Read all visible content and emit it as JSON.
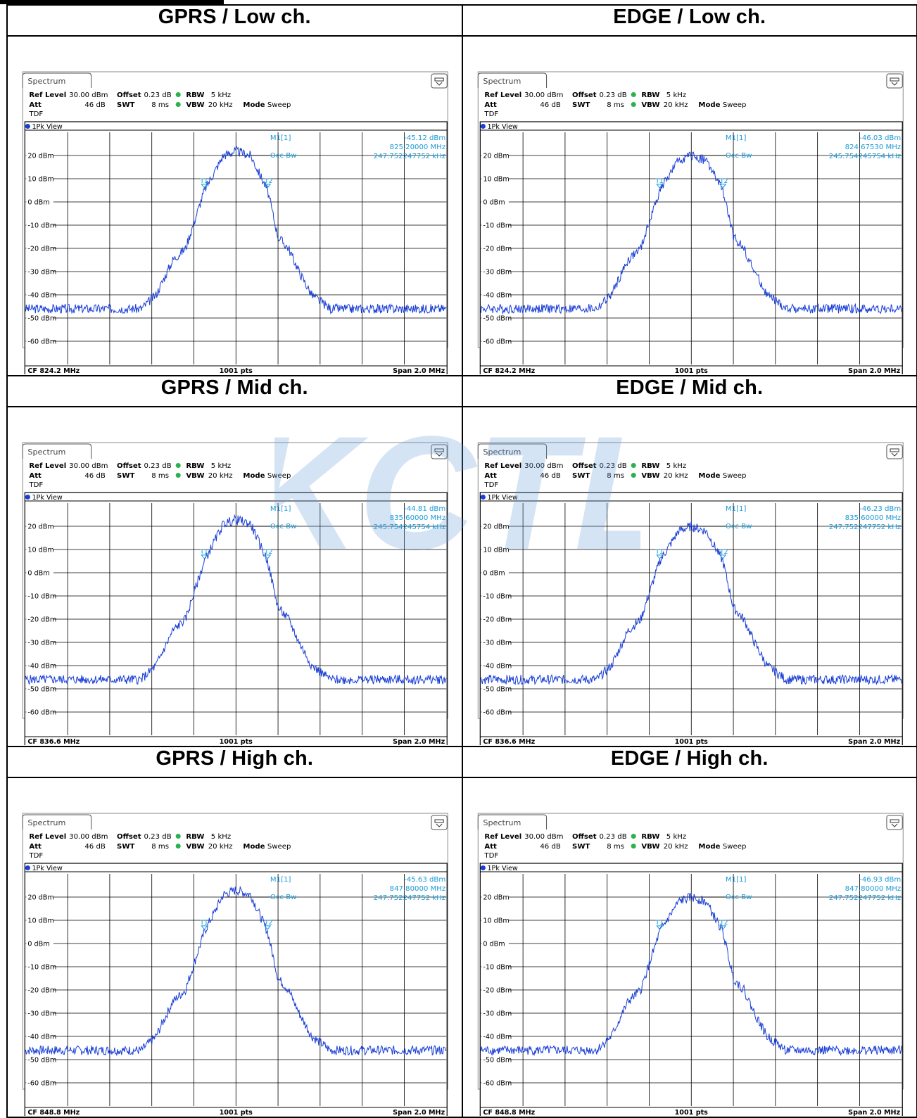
{
  "watermark": "KCTL",
  "common": {
    "tab_label": "Spectrum",
    "ref_level_label": "Ref Level",
    "ref_level_value": "30.00 dBm",
    "offset_label": "Offset",
    "offset_value": "0.23 dB",
    "rbw_label": "RBW",
    "rbw_value": "5 kHz",
    "att_label": "Att",
    "att_value": "46 dB",
    "swt_label": "SWT",
    "swt_value": "8 ms",
    "vbw_label": "VBW",
    "vbw_value": "20 kHz",
    "mode_label": "Mode",
    "mode_value": "Sweep",
    "tdf": "TDF",
    "view_label": "1Pk View",
    "marker_label": "M1[1]",
    "occbw_label": "Occ Bw",
    "pts": "1001 pts",
    "span": "Span 2.0 MHz",
    "y_ticks": [
      "20 dBm",
      "10 dBm",
      "0 dBm",
      "-10 dBm",
      "-20 dBm",
      "-30 dBm",
      "-40 dBm",
      "-50 dBm",
      "-60 dBm"
    ]
  },
  "panels": [
    {
      "title": "GPRS / Low ch.",
      "cf": "CF 824.2 MHz",
      "marker_level": "-45.12 dBm",
      "marker_freq": "825.20000 MHz",
      "occ_bw": "247.752247752 kHz"
    },
    {
      "title": "EDGE / Low ch.",
      "cf": "CF 824.2 MHz",
      "marker_level": "-46.03 dBm",
      "marker_freq": "824.67530 MHz",
      "occ_bw": "245.754245754 kHz"
    },
    {
      "title": "GPRS / Mid ch.",
      "cf": "CF 836.6 MHz",
      "marker_level": "-44.81 dBm",
      "marker_freq": "835.60000 MHz",
      "occ_bw": "245.754245754 kHz"
    },
    {
      "title": "EDGE / Mid ch.",
      "cf": "CF 836.6 MHz",
      "marker_level": "-46.23 dBm",
      "marker_freq": "835.60000 MHz",
      "occ_bw": "247.752247752 kHz"
    },
    {
      "title": "GPRS / High ch.",
      "cf": "CF 848.8 MHz",
      "marker_level": "-45.63 dBm",
      "marker_freq": "847.80000 MHz",
      "occ_bw": "247.752247752 kHz"
    },
    {
      "title": "EDGE / High ch.",
      "cf": "CF 848.8 MHz",
      "marker_level": "-46.93 dBm",
      "marker_freq": "847.80000 MHz",
      "occ_bw": "247.752247752 kHz"
    }
  ],
  "chart_data": [
    {
      "type": "line",
      "title": "GPRS / Low ch.",
      "x_center_mhz": 824.2,
      "span_mhz": 2.0,
      "points": 1001,
      "ylim": [
        -70,
        30
      ],
      "series": [
        {
          "values_x_offset_khz": [
            -1000,
            -450,
            -380,
            -300,
            -240,
            -150,
            -60,
            0,
            70,
            150,
            200,
            250,
            300,
            360,
            450,
            1000
          ],
          "values_dbm": [
            -46,
            -46,
            -40,
            -25,
            -20,
            5,
            20,
            22,
            20,
            5,
            -15,
            -20,
            -30,
            -40,
            -46,
            -46
          ]
        }
      ]
    },
    {
      "type": "line",
      "title": "EDGE / Low ch.",
      "x_center_mhz": 824.2,
      "span_mhz": 2.0,
      "points": 1001,
      "ylim": [
        -70,
        30
      ],
      "series": [
        {
          "values_x_offset_khz": [
            -1000,
            -450,
            -380,
            -300,
            -240,
            -150,
            -60,
            0,
            70,
            150,
            200,
            250,
            300,
            360,
            450,
            1000
          ],
          "values_dbm": [
            -46,
            -46,
            -40,
            -25,
            -20,
            5,
            18,
            20,
            18,
            5,
            -15,
            -20,
            -30,
            -40,
            -46,
            -46
          ]
        }
      ]
    },
    {
      "type": "line",
      "title": "GPRS / Mid ch.",
      "x_center_mhz": 836.6,
      "span_mhz": 2.0,
      "points": 1001,
      "ylim": [
        -70,
        30
      ],
      "series": [
        {
          "values_x_offset_khz": [
            -1000,
            -450,
            -380,
            -300,
            -240,
            -150,
            -60,
            0,
            70,
            150,
            200,
            250,
            300,
            360,
            450,
            1000
          ],
          "values_dbm": [
            -46,
            -46,
            -40,
            -25,
            -20,
            5,
            21,
            23,
            21,
            5,
            -15,
            -20,
            -30,
            -40,
            -46,
            -46
          ]
        }
      ]
    },
    {
      "type": "line",
      "title": "EDGE / Mid ch.",
      "x_center_mhz": 836.6,
      "span_mhz": 2.0,
      "points": 1001,
      "ylim": [
        -70,
        30
      ],
      "series": [
        {
          "values_x_offset_khz": [
            -1000,
            -450,
            -380,
            -300,
            -240,
            -150,
            -60,
            0,
            70,
            150,
            200,
            250,
            300,
            360,
            450,
            1000
          ],
          "values_dbm": [
            -46,
            -46,
            -40,
            -25,
            -20,
            5,
            18,
            20,
            18,
            5,
            -15,
            -20,
            -30,
            -40,
            -46,
            -46
          ]
        }
      ]
    },
    {
      "type": "line",
      "title": "GPRS / High ch.",
      "x_center_mhz": 848.8,
      "span_mhz": 2.0,
      "points": 1001,
      "ylim": [
        -70,
        30
      ],
      "series": [
        {
          "values_x_offset_khz": [
            -1000,
            -450,
            -380,
            -300,
            -240,
            -150,
            -60,
            0,
            70,
            150,
            200,
            250,
            300,
            360,
            450,
            1000
          ],
          "values_dbm": [
            -46,
            -46,
            -40,
            -25,
            -20,
            5,
            21,
            23,
            21,
            5,
            -15,
            -20,
            -30,
            -40,
            -46,
            -46
          ]
        }
      ]
    },
    {
      "type": "line",
      "title": "EDGE / High ch.",
      "x_center_mhz": 848.8,
      "span_mhz": 2.0,
      "points": 1001,
      "ylim": [
        -70,
        30
      ],
      "series": [
        {
          "values_x_offset_khz": [
            -1000,
            -450,
            -380,
            -300,
            -240,
            -150,
            -60,
            0,
            70,
            150,
            200,
            250,
            300,
            360,
            450,
            1000
          ],
          "values_dbm": [
            -46,
            -46,
            -40,
            -25,
            -20,
            5,
            18,
            20,
            18,
            5,
            -15,
            -20,
            -30,
            -40,
            -46,
            -46
          ]
        }
      ]
    }
  ]
}
